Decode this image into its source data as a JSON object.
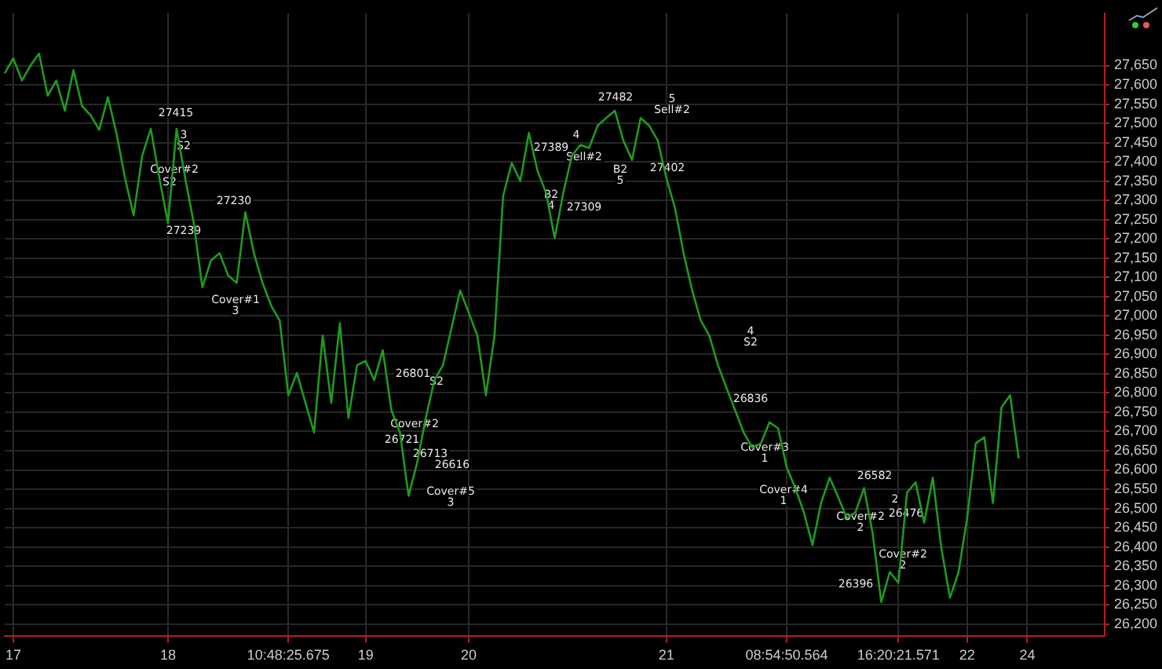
{
  "chart_data": {
    "type": "line",
    "grid": true,
    "legend": false,
    "marker": "none",
    "line_style": "solid",
    "ylim": [
      26168,
      27786
    ],
    "categories": [
      null,
      "17",
      null,
      null,
      null,
      null,
      null,
      null,
      null,
      null,
      null,
      null,
      null,
      null,
      null,
      null,
      null,
      null,
      null,
      "18",
      null,
      null,
      null,
      null,
      null,
      null,
      null,
      null,
      null,
      null,
      null,
      null,
      null,
      "10:48:25.675",
      null,
      null,
      null,
      null,
      null,
      null,
      null,
      null,
      "19",
      null,
      null,
      null,
      null,
      null,
      null,
      null,
      null,
      null,
      null,
      null,
      "20",
      null,
      null,
      null,
      null,
      null,
      null,
      null,
      null,
      null,
      null,
      null,
      null,
      null,
      null,
      null,
      null,
      null,
      null,
      null,
      null,
      null,
      null,
      "21",
      null,
      null,
      null,
      null,
      null,
      null,
      null,
      null,
      null,
      null,
      null,
      null,
      null,
      "08:54:50.564",
      null,
      null,
      null,
      null,
      null,
      null,
      null,
      null,
      null,
      null,
      null,
      null,
      "16:20:21.571",
      null,
      null,
      null,
      null,
      null,
      null,
      null,
      "22",
      null,
      null,
      null,
      null,
      null,
      null,
      "24",
      null,
      null,
      null,
      null,
      null,
      null,
      null,
      null,
      null
    ],
    "yticks": [
      {
        "value": 26200,
        "label": "26,200"
      },
      {
        "value": 26250,
        "label": "26,250"
      },
      {
        "value": 26300,
        "label": "26,300"
      },
      {
        "value": 26350,
        "label": "26,350"
      },
      {
        "value": 26400,
        "label": "26,400"
      },
      {
        "value": 26450,
        "label": "26,450"
      },
      {
        "value": 26500,
        "label": "26,500"
      },
      {
        "value": 26550,
        "label": "26,550"
      },
      {
        "value": 26600,
        "label": "26,600"
      },
      {
        "value": 26650,
        "label": "26,650"
      },
      {
        "value": 26700,
        "label": "26,700"
      },
      {
        "value": 26750,
        "label": "26,750"
      },
      {
        "value": 26800,
        "label": "26,800"
      },
      {
        "value": 26850,
        "label": "26,850"
      },
      {
        "value": 26900,
        "label": "26,900"
      },
      {
        "value": 26950,
        "label": "26,950"
      },
      {
        "value": 27000,
        "label": "27,000"
      },
      {
        "value": 27050,
        "label": "27,050"
      },
      {
        "value": 27100,
        "label": "27,100"
      },
      {
        "value": 27150,
        "label": "27,150"
      },
      {
        "value": 27200,
        "label": "27,200"
      },
      {
        "value": 27250,
        "label": "27,250"
      },
      {
        "value": 27300,
        "label": "27,300"
      },
      {
        "value": 27350,
        "label": "27,350"
      },
      {
        "value": 27400,
        "label": "27,400"
      },
      {
        "value": 27450,
        "label": "27,450"
      },
      {
        "value": 27500,
        "label": "27,500"
      },
      {
        "value": 27550,
        "label": "27,550"
      },
      {
        "value": 27600,
        "label": "27,600"
      },
      {
        "value": 27650,
        "label": "27,650"
      }
    ],
    "series": [
      {
        "color": "#1f9a1f",
        "values": [
          27630,
          27669,
          27611,
          27650,
          27681,
          27572,
          27611,
          27533,
          27638,
          27545,
          27521,
          27483,
          27568,
          27475,
          27358,
          27261,
          27416,
          27486,
          27358,
          27241,
          27486,
          27358,
          27241,
          27074,
          27144,
          27163,
          27105,
          27086,
          27269,
          27163,
          27086,
          27027,
          26988,
          26794,
          26852,
          26774,
          26697,
          26949,
          26774,
          26981,
          26735,
          26872,
          26883,
          26833,
          26911,
          26755,
          26697,
          26533,
          26619,
          26735,
          26833,
          26872,
          26969,
          27066,
          27008,
          26949,
          26794,
          26949,
          27311,
          27397,
          27350,
          27475,
          27377,
          27319,
          27202,
          27319,
          27416,
          27444,
          27436,
          27494,
          27514,
          27533,
          27455,
          27405,
          27514,
          27494,
          27455,
          27358,
          27280,
          27163,
          27066,
          26988,
          26949,
          26872,
          26813,
          26755,
          26697,
          26658,
          26669,
          26724,
          26708,
          26607,
          26553,
          26490,
          26405,
          26514,
          26580,
          26529,
          26475,
          26490,
          26553,
          26436,
          26257,
          26335,
          26307,
          26541,
          26568,
          26463,
          26580,
          26397,
          26268,
          26335,
          26475,
          26669,
          26685,
          26514,
          26763,
          26794,
          26630,
          null,
          null,
          null,
          null,
          null,
          null,
          null,
          null,
          null,
          null
        ]
      }
    ],
    "annotations": [
      "27415",
      "3",
      "S2",
      "Cover#2",
      "S2",
      "27239",
      "27230",
      "Cover#1",
      "3",
      "27389",
      "B2",
      "4",
      "4",
      "Sell#2",
      "27309",
      "27482",
      "B2",
      "5",
      "5",
      "Sell#2",
      "27402",
      "26801",
      "S2",
      "Cover#2",
      "26721",
      "26713",
      "26616",
      "Cover#5",
      "3",
      "4",
      "S2",
      "26836",
      "Cover#3",
      "1",
      "Cover#4",
      "1",
      "26582",
      "Cover#2",
      "2",
      "2",
      "26476",
      "Cover#2",
      "2",
      "26396"
    ]
  }
}
